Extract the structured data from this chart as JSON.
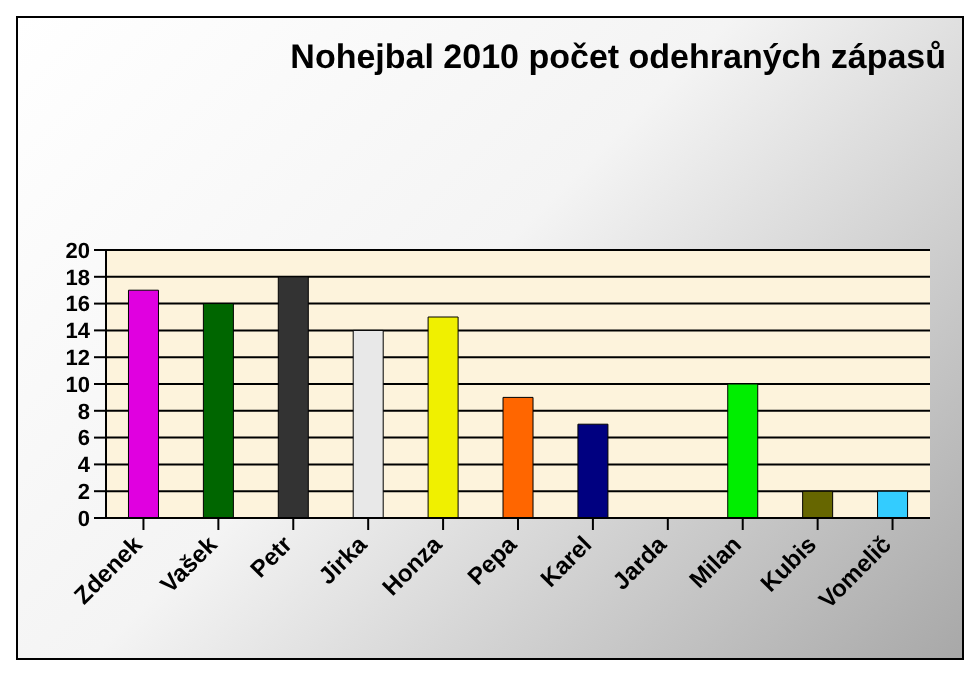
{
  "chart_data": {
    "type": "bar",
    "title": "Nohejbal 2010 počet odehraných zápasů",
    "categories": [
      "Zdenek",
      "Vašek",
      "Petr",
      "Jirka",
      "Honza",
      "Pepa",
      "Karel",
      "Jarda",
      "Milan",
      "Kubis",
      "Vomelič"
    ],
    "values": [
      17,
      16,
      18,
      14,
      15,
      9,
      7,
      0,
      10,
      2,
      2
    ],
    "colors": [
      "#e000e0",
      "#006600",
      "#333333",
      "#e8e8e8",
      "#f0f000",
      "#ff6600",
      "#000080",
      "#999999",
      "#00ee00",
      "#666600",
      "#33ccff"
    ],
    "ylim": [
      0,
      20
    ],
    "yticks": [
      0,
      2,
      4,
      6,
      8,
      10,
      12,
      14,
      16,
      18,
      20
    ],
    "grid": "y",
    "legend": false
  }
}
